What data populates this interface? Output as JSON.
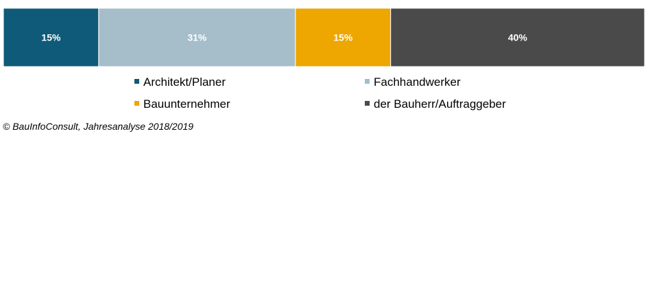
{
  "chart_data": {
    "type": "bar",
    "orientation": "horizontal",
    "stacked": true,
    "percent": true,
    "categories": [
      ""
    ],
    "series": [
      {
        "name": "Architekt/Planer",
        "values": [
          15
        ],
        "label": "15%",
        "color": "#0f5a78"
      },
      {
        "name": "Fachhandwerker",
        "values": [
          31
        ],
        "label": "31%",
        "color": "#a6bdca"
      },
      {
        "name": "Bauunternehmer",
        "values": [
          15
        ],
        "label": "15%",
        "color": "#eea600"
      },
      {
        "name": "der Bauherr/Auftraggeber",
        "values": [
          40
        ],
        "label": "40%",
        "color": "#4a4a4a"
      }
    ],
    "xlim": [
      0,
      101
    ],
    "legend_position": "bottom",
    "grid": false
  },
  "source": "© BauInfoConsult, Jahresanalyse 2018/2019"
}
